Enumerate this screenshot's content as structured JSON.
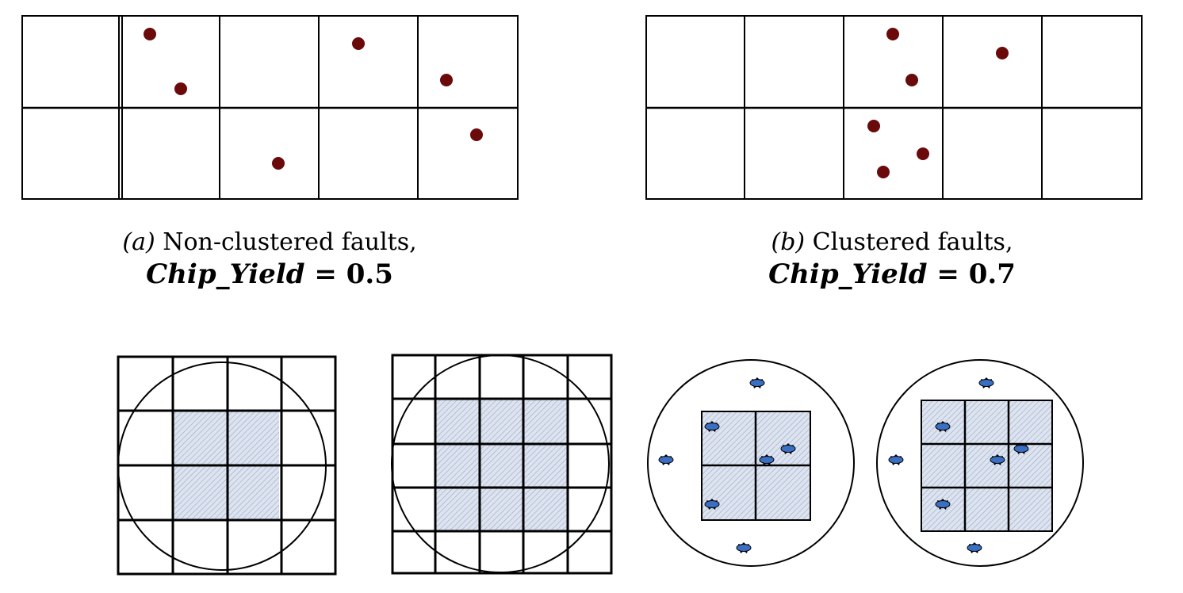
{
  "panel_a": {
    "label": "(a)",
    "description": "Non-clustered faults,",
    "yield_label": "Chip_Yield",
    "yield_equals": "=",
    "yield_value": "0.5"
  },
  "panel_b": {
    "label": "(b)",
    "description": "Clustered faults,",
    "yield_label": "Chip_Yield",
    "yield_equals": "=",
    "yield_value": "0.7"
  },
  "colors": {
    "fault_dot": "#6b0a0a",
    "die_fill": "#dde4f0",
    "defect_blue": "#3a6fc4",
    "line": "#000000"
  },
  "icons": {
    "fault": "fault-dot-icon",
    "defect": "defect-star-icon"
  }
}
